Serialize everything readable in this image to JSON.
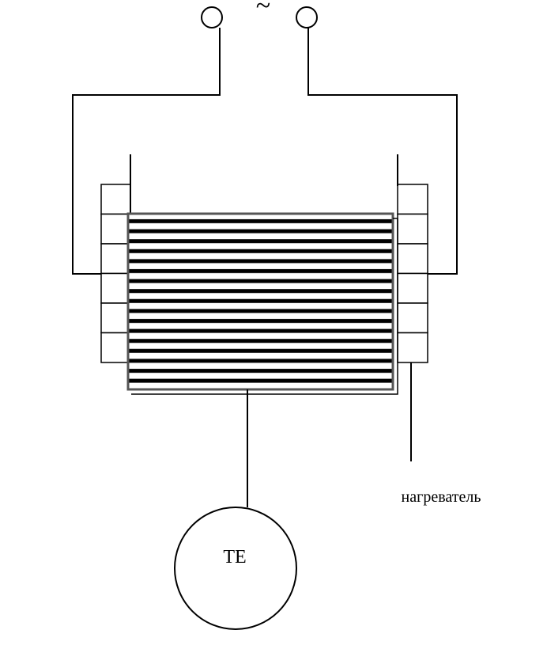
{
  "labels": {
    "ac_symbol": "~",
    "heater": "нагреватель",
    "thermocouple": "ТЕ"
  }
}
